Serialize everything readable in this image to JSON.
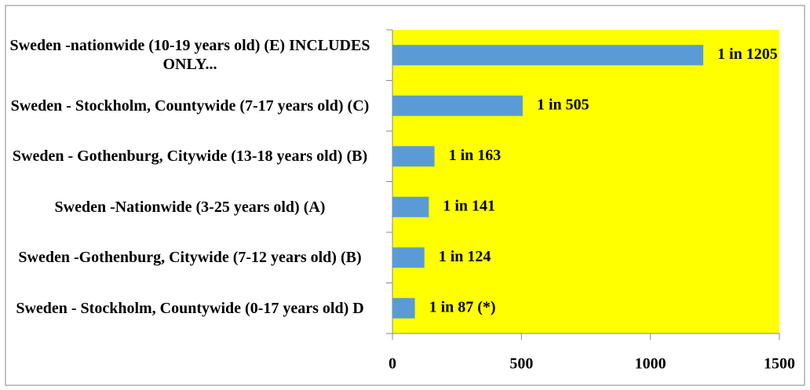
{
  "chart_data": {
    "type": "bar",
    "orientation": "horizontal",
    "categories": [
      "Sweden -nationwide (10-19 years old) (E) INCLUDES ONLY...",
      "Sweden - Stockholm, Countywide (7-17 years old) (C)",
      "Sweden - Gothenburg, Citywide (13-18 years old) (B)",
      "Sweden -Nationwide (3-25 years old) (A)",
      "Sweden -Gothenburg, Citywide (7-12 years old) (B)",
      "Sweden - Stockholm, Countywide (0-17 years old) D"
    ],
    "values": [
      1205,
      505,
      163,
      141,
      124,
      87
    ],
    "value_labels": [
      "1 in 1205",
      "1 in 505",
      "1 in 163",
      "1 in 141",
      "1 in 124",
      "1 in 87 (*)"
    ],
    "color": "#5b9bd5",
    "plot_background": "#ffff00",
    "xlim": [
      0,
      1500
    ],
    "xticks": [
      0,
      500,
      1000,
      1500
    ]
  }
}
